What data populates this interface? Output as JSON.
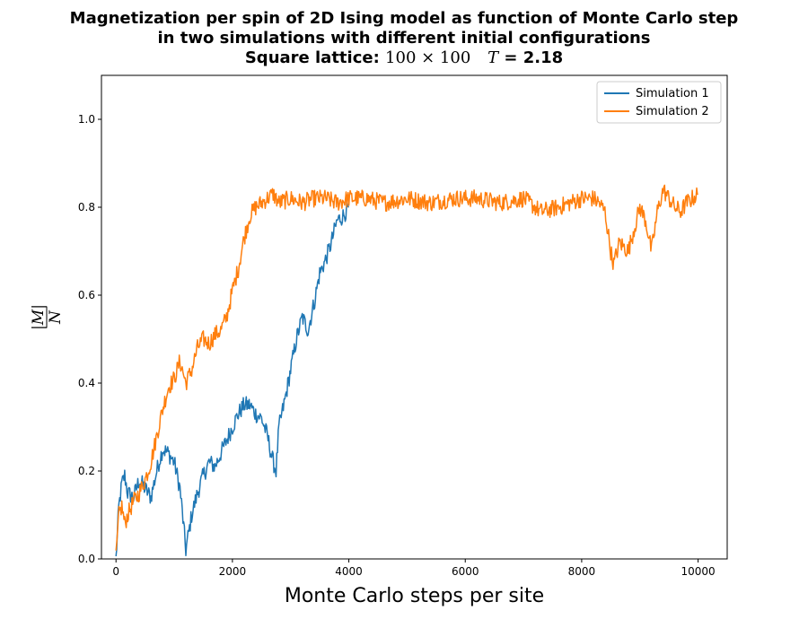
{
  "chart_data": {
    "type": "line",
    "title_lines": [
      "Magnetization per spin of 2D Ising model as function of Monte Carlo step",
      "in two simulations with different initial configurations"
    ],
    "subtitle": {
      "prefix": "Square lattice: ",
      "lattice": "100 × 100",
      "temp_symbol": "T",
      "temp_rest": " = 2.18"
    },
    "xlabel": "Monte Carlo steps per site",
    "ylabel": {
      "numerator": "|M|",
      "denominator": "N"
    },
    "xlim": [
      -250,
      10500
    ],
    "ylim": [
      0,
      1.1
    ],
    "xticks": [
      0,
      2000,
      4000,
      6000,
      8000,
      10000
    ],
    "xtick_labels": [
      "0",
      "2000",
      "4000",
      "6000",
      "8000",
      "10000"
    ],
    "yticks": [
      0.0,
      0.2,
      0.4,
      0.6,
      0.8,
      1.0
    ],
    "ytick_labels": [
      "0.0",
      "0.2",
      "0.4",
      "0.6",
      "0.8",
      "1.0"
    ],
    "grid": false,
    "legend_position": "top-right",
    "series": [
      {
        "name": "Simulation 1",
        "color": "#1f77b4",
        "x": [
          0,
          50,
          100,
          150,
          200,
          300,
          400,
          500,
          600,
          700,
          800,
          900,
          1000,
          1100,
          1150,
          1200,
          1250,
          1300,
          1400,
          1500,
          1600,
          1700,
          1800,
          1900,
          2000,
          2100,
          2200,
          2300,
          2400,
          2500,
          2600,
          2700,
          2750,
          2800,
          2900,
          3000,
          3100,
          3200,
          3300,
          3400,
          3500,
          3600,
          3700,
          3800,
          3900,
          4000
        ],
        "y": [
          0.0,
          0.12,
          0.17,
          0.19,
          0.15,
          0.14,
          0.18,
          0.16,
          0.14,
          0.2,
          0.25,
          0.24,
          0.22,
          0.16,
          0.09,
          0.02,
          0.06,
          0.1,
          0.15,
          0.19,
          0.22,
          0.21,
          0.24,
          0.27,
          0.3,
          0.33,
          0.35,
          0.35,
          0.33,
          0.32,
          0.28,
          0.22,
          0.2,
          0.3,
          0.36,
          0.43,
          0.5,
          0.55,
          0.52,
          0.58,
          0.65,
          0.68,
          0.72,
          0.77,
          0.78,
          0.8
        ]
      },
      {
        "name": "Simulation 2",
        "color": "#ff7f0e",
        "x": [
          0,
          50,
          100,
          150,
          200,
          300,
          400,
          500,
          600,
          700,
          800,
          900,
          1000,
          1100,
          1200,
          1300,
          1400,
          1500,
          1600,
          1700,
          1800,
          1900,
          2000,
          2100,
          2200,
          2300,
          2400,
          2500,
          2600,
          2700,
          2800,
          3000,
          3200,
          3400,
          3600,
          3800,
          4000,
          4300,
          4600,
          5000,
          5400,
          5800,
          6200,
          6600,
          7000,
          7300,
          7600,
          7800,
          8000,
          8200,
          8300,
          8400,
          8500,
          8550,
          8650,
          8800,
          8900,
          9000,
          9100,
          9200,
          9300,
          9400,
          9500,
          9600,
          9700,
          9800,
          9900,
          10000
        ],
        "y": [
          0.0,
          0.1,
          0.12,
          0.08,
          0.1,
          0.13,
          0.15,
          0.18,
          0.22,
          0.28,
          0.34,
          0.39,
          0.41,
          0.45,
          0.4,
          0.43,
          0.48,
          0.5,
          0.49,
          0.51,
          0.52,
          0.55,
          0.61,
          0.66,
          0.73,
          0.78,
          0.8,
          0.81,
          0.82,
          0.83,
          0.81,
          0.82,
          0.81,
          0.82,
          0.82,
          0.81,
          0.82,
          0.82,
          0.81,
          0.82,
          0.81,
          0.82,
          0.82,
          0.81,
          0.82,
          0.79,
          0.8,
          0.81,
          0.82,
          0.82,
          0.81,
          0.79,
          0.7,
          0.67,
          0.72,
          0.7,
          0.75,
          0.8,
          0.77,
          0.7,
          0.79,
          0.84,
          0.82,
          0.8,
          0.79,
          0.81,
          0.82,
          0.83
        ]
      }
    ]
  }
}
